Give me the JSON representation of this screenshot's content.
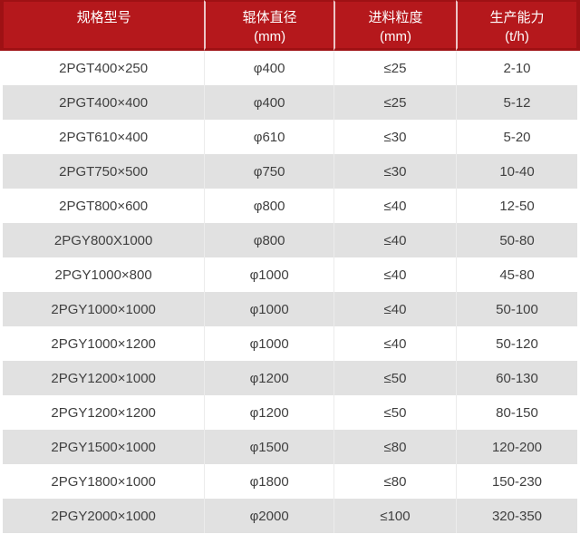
{
  "colors": {
    "header_background": "#b5181c",
    "header_border": "#9e1114",
    "header_text": "#ffffff",
    "row_alternate_background": "#e1e1e1",
    "row_background": "#ffffff",
    "body_text": "#404040",
    "column_divider": "#ececec"
  },
  "table": {
    "headers": [
      {
        "label": "规格型号",
        "unit": ""
      },
      {
        "label": "辊体直径",
        "unit": "(mm)"
      },
      {
        "label": "进料粒度",
        "unit": "(mm)"
      },
      {
        "label": "生产能力",
        "unit": "(t/h)"
      }
    ],
    "rows": [
      [
        "2PGT400×250",
        "φ400",
        "≤25",
        "2-10"
      ],
      [
        "2PGT400×400",
        "φ400",
        "≤25",
        "5-12"
      ],
      [
        "2PGT610×400",
        "φ610",
        "≤30",
        "5-20"
      ],
      [
        "2PGT750×500",
        "φ750",
        "≤30",
        "10-40"
      ],
      [
        "2PGT800×600",
        "φ800",
        "≤40",
        "12-50"
      ],
      [
        "2PGY800X1000",
        "φ800",
        "≤40",
        "50-80"
      ],
      [
        "2PGY1000×800",
        "φ1000",
        "≤40",
        "45-80"
      ],
      [
        "2PGY1000×1000",
        "φ1000",
        "≤40",
        "50-100"
      ],
      [
        "2PGY1000×1200",
        "φ1000",
        "≤40",
        "50-120"
      ],
      [
        "2PGY1200×1000",
        "φ1200",
        "≤50",
        "60-130"
      ],
      [
        "2PGY1200×1200",
        "φ1200",
        "≤50",
        "80-150"
      ],
      [
        "2PGY1500×1000",
        "φ1500",
        "≤80",
        "120-200"
      ],
      [
        "2PGY1800×1000",
        "φ1800",
        "≤80",
        "150-230"
      ],
      [
        "2PGY2000×1000",
        "φ2000",
        "≤100",
        "320-350"
      ]
    ]
  }
}
